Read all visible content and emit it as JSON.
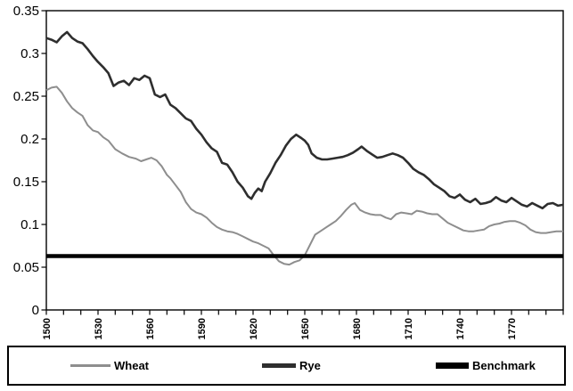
{
  "chart_data": {
    "type": "line",
    "title": "",
    "xlabel": "",
    "ylabel": "",
    "background_color": "#ffffff",
    "axis_color": "#000000",
    "x_axis": {
      "min": 1500,
      "max": 1800,
      "minor_tick_step": 10,
      "labeled_ticks": [
        1500,
        1530,
        1560,
        1590,
        1620,
        1650,
        1680,
        1710,
        1740,
        1770
      ],
      "label_rotation_deg": -90
    },
    "y_axis": {
      "min": 0,
      "max": 0.35,
      "tick_step": 0.05,
      "ticks": [
        {
          "value": 0,
          "label": "0"
        },
        {
          "value": 0.05,
          "label": "0.05"
        },
        {
          "value": 0.1,
          "label": "0.1"
        },
        {
          "value": 0.15,
          "label": "0.15"
        },
        {
          "value": 0.2,
          "label": "0.2"
        },
        {
          "value": 0.25,
          "label": "0.25"
        },
        {
          "value": 0.3,
          "label": "0.3"
        },
        {
          "value": 0.35,
          "label": "0.35"
        }
      ]
    },
    "legend": {
      "position": "bottom",
      "border": true
    },
    "series": [
      {
        "name": "Wheat",
        "color": "#8e8e8e",
        "stroke_width": 2,
        "points": [
          [
            1500,
            0.257
          ],
          [
            1503,
            0.26
          ],
          [
            1506,
            0.261
          ],
          [
            1509,
            0.254
          ],
          [
            1512,
            0.244
          ],
          [
            1515,
            0.236
          ],
          [
            1518,
            0.231
          ],
          [
            1521,
            0.227
          ],
          [
            1524,
            0.216
          ],
          [
            1527,
            0.21
          ],
          [
            1530,
            0.208
          ],
          [
            1533,
            0.202
          ],
          [
            1536,
            0.198
          ],
          [
            1540,
            0.188
          ],
          [
            1544,
            0.183
          ],
          [
            1548,
            0.179
          ],
          [
            1552,
            0.177
          ],
          [
            1555,
            0.174
          ],
          [
            1558,
            0.176
          ],
          [
            1561,
            0.178
          ],
          [
            1564,
            0.175
          ],
          [
            1567,
            0.168
          ],
          [
            1570,
            0.158
          ],
          [
            1572,
            0.154
          ],
          [
            1575,
            0.146
          ],
          [
            1578,
            0.138
          ],
          [
            1581,
            0.126
          ],
          [
            1584,
            0.118
          ],
          [
            1587,
            0.114
          ],
          [
            1590,
            0.112
          ],
          [
            1593,
            0.108
          ],
          [
            1596,
            0.102
          ],
          [
            1599,
            0.097
          ],
          [
            1602,
            0.094
          ],
          [
            1605,
            0.092
          ],
          [
            1608,
            0.091
          ],
          [
            1611,
            0.089
          ],
          [
            1614,
            0.086
          ],
          [
            1617,
            0.083
          ],
          [
            1620,
            0.08
          ],
          [
            1623,
            0.078
          ],
          [
            1626,
            0.075
          ],
          [
            1629,
            0.072
          ],
          [
            1632,
            0.064
          ],
          [
            1635,
            0.057
          ],
          [
            1638,
            0.054
          ],
          [
            1641,
            0.053
          ],
          [
            1644,
            0.056
          ],
          [
            1647,
            0.058
          ],
          [
            1650,
            0.064
          ],
          [
            1653,
            0.076
          ],
          [
            1656,
            0.088
          ],
          [
            1659,
            0.092
          ],
          [
            1662,
            0.096
          ],
          [
            1665,
            0.1
          ],
          [
            1668,
            0.104
          ],
          [
            1671,
            0.11
          ],
          [
            1674,
            0.117
          ],
          [
            1677,
            0.123
          ],
          [
            1679,
            0.125
          ],
          [
            1682,
            0.117
          ],
          [
            1685,
            0.114
          ],
          [
            1688,
            0.112
          ],
          [
            1691,
            0.111
          ],
          [
            1694,
            0.111
          ],
          [
            1697,
            0.108
          ],
          [
            1700,
            0.106
          ],
          [
            1703,
            0.112
          ],
          [
            1706,
            0.114
          ],
          [
            1709,
            0.113
          ],
          [
            1712,
            0.112
          ],
          [
            1715,
            0.116
          ],
          [
            1718,
            0.115
          ],
          [
            1721,
            0.113
          ],
          [
            1724,
            0.112
          ],
          [
            1727,
            0.112
          ],
          [
            1730,
            0.107
          ],
          [
            1733,
            0.102
          ],
          [
            1736,
            0.099
          ],
          [
            1739,
            0.096
          ],
          [
            1742,
            0.093
          ],
          [
            1745,
            0.092
          ],
          [
            1748,
            0.092
          ],
          [
            1751,
            0.093
          ],
          [
            1754,
            0.094
          ],
          [
            1757,
            0.098
          ],
          [
            1760,
            0.1
          ],
          [
            1763,
            0.101
          ],
          [
            1766,
            0.103
          ],
          [
            1769,
            0.104
          ],
          [
            1772,
            0.104
          ],
          [
            1775,
            0.102
          ],
          [
            1778,
            0.099
          ],
          [
            1781,
            0.094
          ],
          [
            1784,
            0.091
          ],
          [
            1787,
            0.09
          ],
          [
            1790,
            0.09
          ],
          [
            1793,
            0.091
          ],
          [
            1796,
            0.092
          ],
          [
            1800,
            0.092
          ]
        ]
      },
      {
        "name": "Rye",
        "color": "#2e2e2e",
        "stroke_width": 2.6,
        "points": [
          [
            1500,
            0.318
          ],
          [
            1503,
            0.316
          ],
          [
            1506,
            0.313
          ],
          [
            1509,
            0.32
          ],
          [
            1512,
            0.325
          ],
          [
            1515,
            0.318
          ],
          [
            1518,
            0.314
          ],
          [
            1521,
            0.312
          ],
          [
            1524,
            0.305
          ],
          [
            1527,
            0.297
          ],
          [
            1530,
            0.29
          ],
          [
            1533,
            0.284
          ],
          [
            1536,
            0.277
          ],
          [
            1539,
            0.262
          ],
          [
            1542,
            0.266
          ],
          [
            1545,
            0.268
          ],
          [
            1548,
            0.263
          ],
          [
            1551,
            0.271
          ],
          [
            1554,
            0.269
          ],
          [
            1557,
            0.274
          ],
          [
            1560,
            0.271
          ],
          [
            1563,
            0.252
          ],
          [
            1566,
            0.249
          ],
          [
            1569,
            0.252
          ],
          [
            1572,
            0.24
          ],
          [
            1575,
            0.236
          ],
          [
            1578,
            0.23
          ],
          [
            1581,
            0.224
          ],
          [
            1584,
            0.221
          ],
          [
            1587,
            0.212
          ],
          [
            1590,
            0.205
          ],
          [
            1593,
            0.196
          ],
          [
            1596,
            0.189
          ],
          [
            1599,
            0.185
          ],
          [
            1602,
            0.172
          ],
          [
            1605,
            0.17
          ],
          [
            1608,
            0.161
          ],
          [
            1611,
            0.15
          ],
          [
            1614,
            0.143
          ],
          [
            1617,
            0.133
          ],
          [
            1619,
            0.13
          ],
          [
            1621,
            0.137
          ],
          [
            1623,
            0.142
          ],
          [
            1625,
            0.139
          ],
          [
            1627,
            0.15
          ],
          [
            1630,
            0.16
          ],
          [
            1633,
            0.172
          ],
          [
            1636,
            0.181
          ],
          [
            1639,
            0.192
          ],
          [
            1642,
            0.2
          ],
          [
            1645,
            0.205
          ],
          [
            1648,
            0.201
          ],
          [
            1650,
            0.198
          ],
          [
            1652,
            0.193
          ],
          [
            1654,
            0.183
          ],
          [
            1657,
            0.178
          ],
          [
            1660,
            0.176
          ],
          [
            1663,
            0.176
          ],
          [
            1666,
            0.177
          ],
          [
            1669,
            0.178
          ],
          [
            1672,
            0.179
          ],
          [
            1675,
            0.181
          ],
          [
            1678,
            0.184
          ],
          [
            1681,
            0.188
          ],
          [
            1683,
            0.191
          ],
          [
            1686,
            0.186
          ],
          [
            1689,
            0.182
          ],
          [
            1692,
            0.178
          ],
          [
            1695,
            0.179
          ],
          [
            1698,
            0.181
          ],
          [
            1701,
            0.183
          ],
          [
            1704,
            0.181
          ],
          [
            1707,
            0.178
          ],
          [
            1710,
            0.172
          ],
          [
            1713,
            0.165
          ],
          [
            1716,
            0.161
          ],
          [
            1719,
            0.158
          ],
          [
            1722,
            0.153
          ],
          [
            1725,
            0.147
          ],
          [
            1728,
            0.143
          ],
          [
            1731,
            0.139
          ],
          [
            1734,
            0.133
          ],
          [
            1737,
            0.131
          ],
          [
            1740,
            0.135
          ],
          [
            1743,
            0.129
          ],
          [
            1746,
            0.126
          ],
          [
            1749,
            0.13
          ],
          [
            1752,
            0.124
          ],
          [
            1755,
            0.125
          ],
          [
            1758,
            0.127
          ],
          [
            1761,
            0.132
          ],
          [
            1764,
            0.128
          ],
          [
            1767,
            0.126
          ],
          [
            1770,
            0.131
          ],
          [
            1773,
            0.127
          ],
          [
            1776,
            0.123
          ],
          [
            1779,
            0.121
          ],
          [
            1782,
            0.125
          ],
          [
            1785,
            0.122
          ],
          [
            1788,
            0.119
          ],
          [
            1791,
            0.124
          ],
          [
            1794,
            0.125
          ],
          [
            1797,
            0.122
          ],
          [
            1800,
            0.123
          ]
        ]
      },
      {
        "name": "Benchmark",
        "color": "#000000",
        "stroke_width": 4.5,
        "points": [
          [
            1500,
            0.063
          ],
          [
            1800,
            0.063
          ]
        ]
      }
    ]
  }
}
